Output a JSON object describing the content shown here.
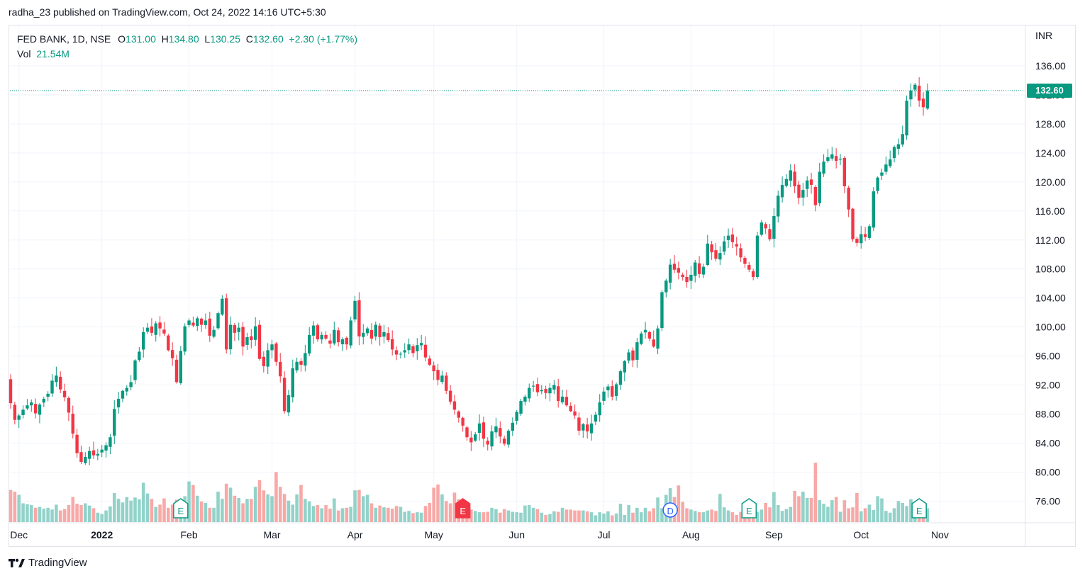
{
  "header": {
    "publisher_line": "radha_23 published on TradingView.com, Oct 24, 2022 14:16 UTC+5:30"
  },
  "legend": {
    "symbol": "FED BANK, 1D, NSE",
    "o_label": "O",
    "o_value": "131.00",
    "h_label": "H",
    "h_value": "134.80",
    "l_label": "L",
    "l_value": "130.25",
    "c_label": "C",
    "c_value": "132.60",
    "change": "+2.30 (+1.77%)",
    "vol_label": "Vol",
    "vol_value": "21.54M"
  },
  "price_axis": {
    "currency": "INR",
    "current_price": "132.60"
  },
  "footer": {
    "brand": "TradingView"
  },
  "colors": {
    "up": "#089981",
    "down": "#f23645",
    "up_volume": "#92d2c9",
    "down_volume": "#f7a9a7",
    "grid": "#f0f3fa",
    "axis_text": "#131722"
  },
  "icons": {
    "brand": "tradingview-logo-icon"
  },
  "chart_data": {
    "type": "candlestick",
    "ylim": [
      73,
      138
    ],
    "yticks": [
      76,
      80,
      84,
      88,
      92,
      96,
      100,
      104,
      108,
      112,
      116,
      120,
      124,
      128,
      132,
      136
    ],
    "x_ticks": [
      {
        "label": "Dec",
        "i": 2,
        "bold": false
      },
      {
        "label": "2022",
        "i": 22,
        "bold": true
      },
      {
        "label": "Feb",
        "i": 43,
        "bold": false
      },
      {
        "label": "Mar",
        "i": 63,
        "bold": false
      },
      {
        "label": "Apr",
        "i": 83,
        "bold": false
      },
      {
        "label": "May",
        "i": 102,
        "bold": false
      },
      {
        "label": "Jun",
        "i": 122,
        "bold": false
      },
      {
        "label": "Jul",
        "i": 143,
        "bold": false
      },
      {
        "label": "Aug",
        "i": 164,
        "bold": false
      },
      {
        "label": "Sep",
        "i": 184,
        "bold": false
      },
      {
        "label": "Oct",
        "i": 205,
        "bold": false
      },
      {
        "label": "Nov",
        "i": 224,
        "bold": false
      }
    ],
    "events": [
      {
        "label": "E",
        "i": 41,
        "kind": "earnings",
        "color": "#089981"
      },
      {
        "label": "E",
        "i": 109,
        "kind": "earnings",
        "color": "#f23645"
      },
      {
        "label": "D",
        "i": 159,
        "kind": "dividend",
        "color": "#2962ff"
      },
      {
        "label": "E",
        "i": 178,
        "kind": "earnings",
        "color": "#089981"
      },
      {
        "label": "E",
        "i": 219,
        "kind": "earnings",
        "color": "#089981"
      }
    ],
    "current_price": 132.6,
    "closes": [
      89.5,
      87.2,
      87.8,
      88.6,
      89.2,
      89.6,
      88.1,
      89.3,
      90.1,
      90.8,
      92.6,
      93.3,
      91.4,
      90.3,
      88.2,
      85.3,
      82.6,
      81.4,
      82.1,
      82.9,
      82.3,
      82.5,
      83.1,
      83.7,
      84.8,
      88.7,
      90.1,
      91.2,
      91.6,
      92.4,
      95.4,
      96.6,
      99.3,
      99.9,
      99.2,
      100.5,
      99.8,
      99.1,
      96.8,
      95.7,
      92.4,
      96.7,
      100.1,
      100.9,
      100.2,
      101.2,
      100.3,
      100.9,
      98.8,
      99.6,
      101.9,
      103.9,
      96.9,
      100.3,
      99.2,
      99.9,
      97.3,
      98.6,
      98.2,
      100.1,
      95.6,
      94.6,
      96.8,
      97.6,
      95.2,
      93.2,
      88.4,
      90.6,
      94.3,
      95.2,
      94.8,
      96.4,
      98.9,
      100.2,
      98.3,
      98.9,
      98.4,
      97.7,
      99.6,
      97.9,
      98.3,
      97.6,
      100.9,
      103.6,
      98.7,
      99.2,
      99.8,
      98.4,
      100.3,
      98.6,
      99.3,
      98.2,
      96.9,
      96.2,
      96.3,
      96.8,
      97.6,
      96.4,
      97.5,
      97.8,
      95.8,
      94.8,
      93.9,
      92.7,
      93.3,
      91.2,
      89.7,
      88.6,
      87.5,
      86.4,
      84.8,
      84.1,
      85.2,
      86.7,
      84.6,
      83.8,
      85.6,
      86.3,
      84.9,
      83.9,
      85.7,
      86.8,
      88.3,
      89.8,
      90.4,
      91.6,
      91.9,
      91.0,
      91.3,
      90.9,
      91.6,
      92.0,
      89.8,
      90.4,
      89.2,
      88.4,
      87.8,
      85.7,
      86.6,
      85.6,
      86.7,
      87.9,
      89.6,
      91.1,
      91.8,
      90.4,
      92.1,
      93.9,
      95.3,
      96.5,
      95.4,
      97.9,
      99.1,
      99.6,
      98.4,
      97.3,
      99.8,
      104.8,
      106.4,
      108.6,
      107.9,
      107.5,
      106.9,
      106.2,
      107.2,
      108.9,
      107.3,
      108.3,
      111.5,
      110.3,
      109.4,
      110.2,
      111.8,
      112.6,
      111.7,
      111.1,
      109.6,
      108.7,
      107.9,
      106.9,
      112.6,
      114.4,
      113.6,
      112.1,
      115.3,
      118.1,
      119.6,
      120.4,
      121.6,
      119.4,
      117.8,
      118.9,
      120.2,
      119.6,
      116.8,
      121.4,
      122.8,
      123.4,
      123.8,
      122.9,
      123.2,
      119.4,
      116.2,
      112.1,
      111.6,
      112.8,
      112.4,
      113.9,
      118.7,
      120.6,
      121.3,
      122.4,
      123.1,
      124.8,
      125.2,
      126.6,
      131.2,
      132.6,
      133.4,
      131.2,
      130.3,
      132.6
    ],
    "volumes": [
      7.2,
      6.8,
      6.1,
      4.2,
      4.0,
      3.8,
      3.2,
      3.4,
      3.0,
      3.2,
      2.8,
      3.9,
      2.6,
      2.9,
      3.8,
      5.6,
      4.1,
      3.8,
      4.2,
      3.7,
      3.1,
      2.1,
      1.8,
      2.6,
      3.5,
      6.5,
      5.2,
      4.4,
      5.6,
      4.8,
      5.5,
      5.1,
      8.8,
      6.4,
      5.2,
      3.4,
      3.9,
      5.3,
      3.2,
      3.9,
      5.0,
      4.6,
      5.8,
      9.1,
      8.3,
      5.9,
      4.6,
      4.3,
      3.2,
      3.2,
      6.8,
      5.2,
      8.6,
      7.7,
      5.9,
      5.4,
      4.2,
      5.2,
      5.2,
      7.9,
      9.4,
      7.1,
      6.2,
      5.8,
      11.2,
      7.9,
      6.3,
      4.8,
      3.9,
      6.2,
      8.3,
      5.2,
      4.6,
      3.6,
      3.8,
      3.1,
      3.8,
      3.0,
      5.3,
      2.6,
      3.1,
      3.2,
      3.4,
      7.1,
      7.2,
      5.8,
      6.1,
      4.2,
      3.2,
      3.7,
      3.3,
      3.2,
      3.0,
      3.6,
      3.4,
      2.3,
      2.5,
      2.0,
      2.2,
      2.1,
      3.6,
      4.3,
      7.7,
      8.4,
      6.2,
      4.7,
      4.2,
      6.6,
      5.1,
      4.1,
      3.6,
      2.8,
      2.5,
      2.2,
      2.2,
      2.3,
      3.2,
      2.9,
      2.1,
      2.9,
      2.6,
      2.3,
      2.2,
      2.1,
      3.7,
      3.8,
      3.2,
      2.9,
      2.1,
      1.6,
      1.8,
      2.4,
      2.3,
      3.2,
      2.8,
      2.8,
      2.6,
      2.6,
      2.6,
      2.4,
      2.2,
      1.5,
      2.2,
      1.9,
      2.4,
      1.5,
      1.9,
      4.1,
      1.6,
      3.8,
      2.1,
      3.2,
      2.2,
      3.2,
      2.4,
      3.1,
      5.5,
      3.1,
      6.1,
      7.6,
      5.6,
      8.2,
      4.5,
      3.1,
      2.8,
      2.5,
      2.2,
      2.2,
      2.6,
      2.8,
      2.5,
      6.3,
      3.3,
      2.6,
      2.2,
      1.6,
      2.3,
      3.4,
      3.1,
      2.6,
      2.3,
      2.8,
      4.3,
      3.3,
      6.7,
      3.8,
      2.5,
      2.9,
      3.4,
      7.0,
      5.8,
      6.8,
      5.4,
      5.4,
      13.3,
      4.9,
      4.1,
      3.4,
      4.9,
      5.6,
      2.3,
      4.9,
      3.1,
      3.3,
      6.5,
      2.4,
      3.1,
      3.9,
      2.7,
      5.8,
      5.3,
      2.5,
      2.1,
      3.1,
      4.7,
      4.3,
      3.6,
      5.1,
      3.4,
      3.8,
      2.0,
      3.1,
      1.9,
      3.4,
      3.9,
      4.1,
      4.7,
      13.8,
      5.6,
      4.1,
      3.8,
      3.1,
      3.9
    ]
  }
}
